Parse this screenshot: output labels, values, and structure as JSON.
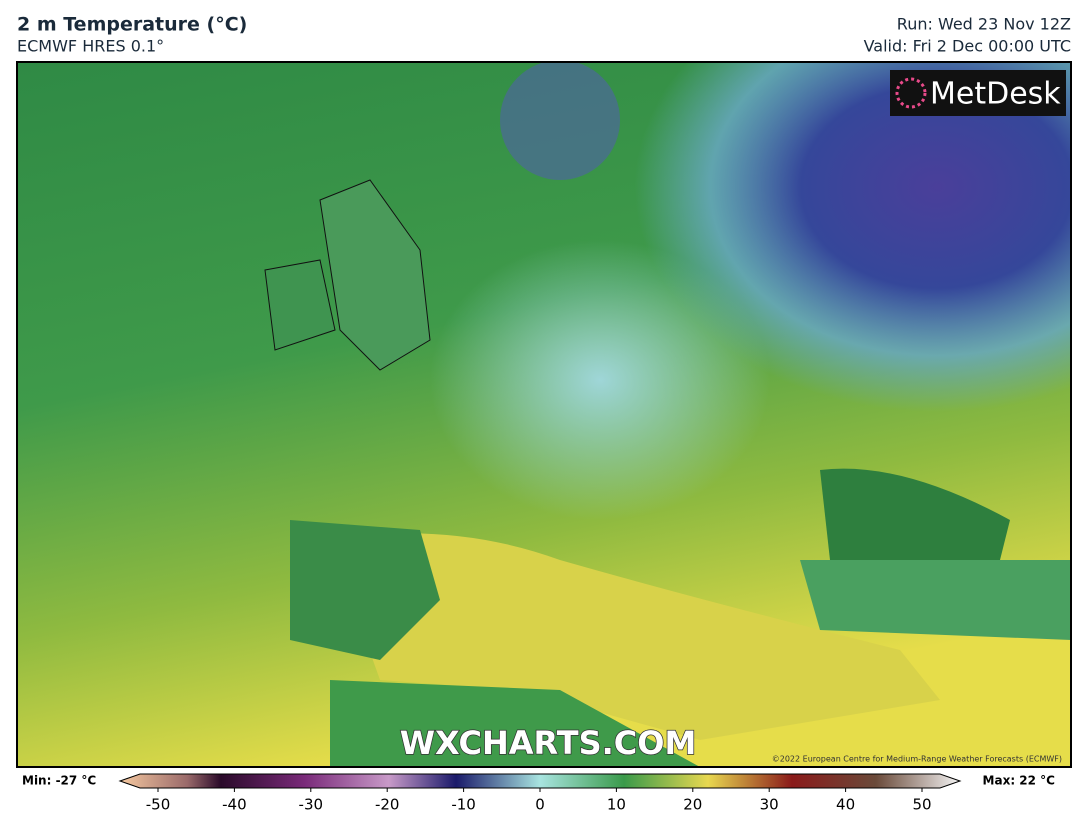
{
  "header": {
    "title": "2 m Temperature (°C)",
    "subtitle": "ECMWF HRES 0.1°",
    "run": "Run: Wed 23 Nov 12Z",
    "valid": "Valid: Fri 2 Dec 00:00 UTC"
  },
  "map": {
    "logo": "MetDesk",
    "watermark": "WXCHARTS.COM",
    "copyright": "©2022 European Centre for Medium-Range Weather Forecasts (ECMWF)"
  },
  "colorbar": {
    "min_label": "Min: -27 °C",
    "max_label": "Max: 22 °C",
    "range": [
      -50,
      50
    ],
    "ticks": [
      -50,
      -40,
      -30,
      -20,
      -10,
      0,
      10,
      20,
      30,
      40,
      50
    ]
  }
}
